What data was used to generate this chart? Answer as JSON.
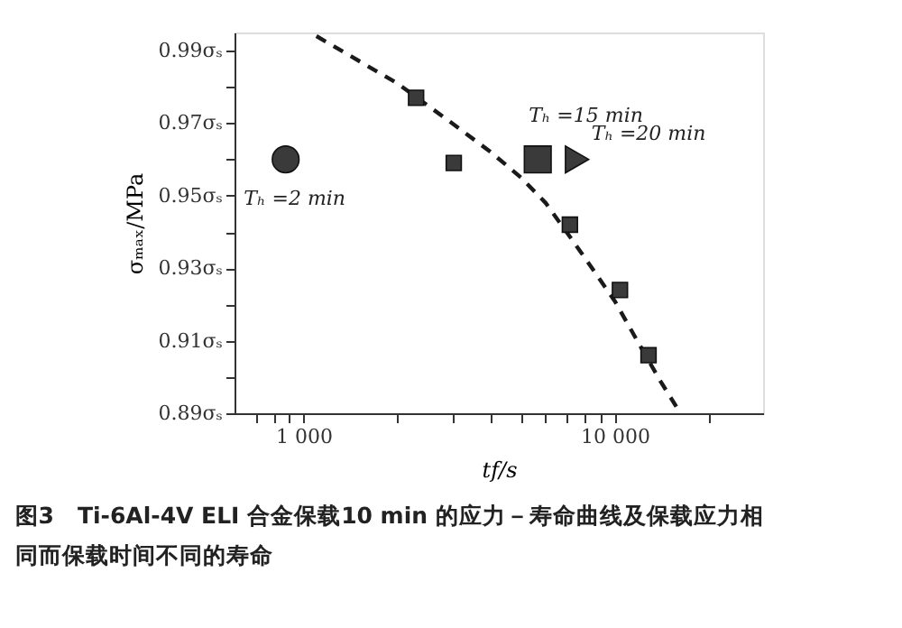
{
  "chart_data": {
    "type": "scatter",
    "title": "图3　Ti-6Al-4V ELI 合金保载10 min 的应力－寿命曲线及保载应力相同而保载时间不同的寿命",
    "xlabel": "tf/s",
    "ylabel": "σₘₐₓ/MPa",
    "log": "x",
    "grid": false,
    "xlim": [
      600,
      30000
    ],
    "ylim": [
      0.89,
      0.995
    ],
    "xticks": [
      {
        "value": 700,
        "label": null
      },
      {
        "value": 800,
        "label": null
      },
      {
        "value": 900,
        "label": null
      },
      {
        "value": 1000,
        "label": "1 000"
      },
      {
        "value": 2000,
        "label": null
      },
      {
        "value": 3000,
        "label": null
      },
      {
        "value": 4000,
        "label": null
      },
      {
        "value": 5000,
        "label": null
      },
      {
        "value": 6000,
        "label": null
      },
      {
        "value": 7000,
        "label": null
      },
      {
        "value": 8000,
        "label": null
      },
      {
        "value": 9000,
        "label": null
      },
      {
        "value": 10000,
        "label": "10 000"
      },
      {
        "value": 20000,
        "label": null
      }
    ],
    "yticks": [
      {
        "value": 0.89,
        "label": "0.89σₛ"
      },
      {
        "value": 0.9,
        "label": null
      },
      {
        "value": 0.91,
        "label": "0.91σₛ"
      },
      {
        "value": 0.92,
        "label": null
      },
      {
        "value": 0.93,
        "label": "0.93σₛ"
      },
      {
        "value": 0.94,
        "label": null
      },
      {
        "value": 0.95,
        "label": "0.95σₛ"
      },
      {
        "value": 0.96,
        "label": null
      },
      {
        "value": 0.97,
        "label": "0.97σₛ"
      },
      {
        "value": 0.98,
        "label": null
      },
      {
        "value": 0.99,
        "label": "0.99σₛ"
      }
    ],
    "series": [
      {
        "type": "line",
        "color": "#1a1a1a",
        "marker": "none",
        "line_style": "dashed",
        "x": [
          1100,
          2000,
          3000,
          4000,
          5000,
          6000,
          7000,
          8000,
          10000,
          12000,
          14000,
          16000
        ],
        "values": [
          0.994,
          0.981,
          0.97,
          0.962,
          0.955,
          0.948,
          0.94,
          0.933,
          0.921,
          0.909,
          0.899,
          0.891
        ]
      },
      {
        "color": "#3a3a3a",
        "marker": "square",
        "x": [
          2300,
          3040,
          7180,
          10400,
          12850
        ],
        "values": [
          0.977,
          0.959,
          0.942,
          0.924,
          0.906
        ]
      },
      {
        "color": "#3a3a3a",
        "marker": "circle",
        "x": [
          876
        ],
        "values": [
          0.96
        ]
      },
      {
        "color": "#3a3a3a",
        "marker": "square",
        "x": [
          5660
        ],
        "values": [
          0.96
        ]
      },
      {
        "color": "#3a3a3a",
        "marker": "triangle",
        "x": [
          7570
        ],
        "values": [
          0.96
        ]
      }
    ],
    "annotations": [
      {
        "text": "Tₕ =2 min",
        "x": 876,
        "y": 0.96
      },
      {
        "text": "Tₕ =15 min",
        "x": 5660,
        "y": 0.96
      },
      {
        "text": "Tₕ =20 min",
        "x": 7570,
        "y": 0.96
      }
    ]
  }
}
